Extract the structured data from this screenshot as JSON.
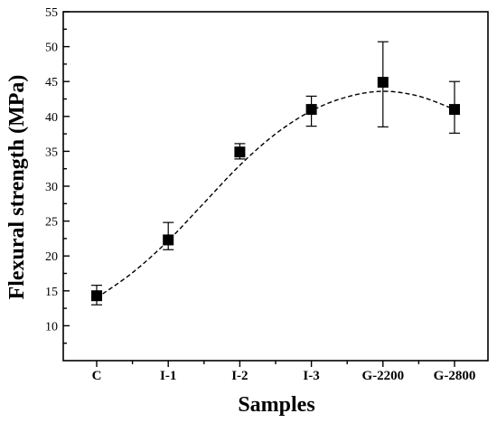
{
  "chart_data": {
    "type": "scatter",
    "categories": [
      "C",
      "I-1",
      "I-2",
      "I-3",
      "G-2200",
      "G-2800"
    ],
    "xlabel": "Samples",
    "ylabel": "Flexural strength (MPa)",
    "ylim": [
      5,
      55
    ],
    "yticks": [
      10,
      15,
      20,
      25,
      30,
      35,
      40,
      45,
      50,
      55
    ],
    "series": [
      {
        "values": [
          14.3,
          22.3,
          34.9,
          41.0,
          44.9,
          41.0
        ],
        "error_low": [
          13.0,
          20.9,
          33.9,
          38.6,
          38.5,
          37.6
        ],
        "error_high": [
          15.8,
          24.8,
          36.1,
          42.9,
          50.7,
          45.0
        ],
        "marker": "square"
      }
    ],
    "fit_curve": {
      "style": "dashed",
      "points": [
        [
          0,
          14.0
        ],
        [
          0.5,
          17.6
        ],
        [
          1,
          22.2
        ],
        [
          1.5,
          27.6
        ],
        [
          2,
          33.0
        ],
        [
          2.5,
          37.5
        ],
        [
          3,
          40.8
        ],
        [
          3.5,
          42.8
        ],
        [
          4,
          43.6
        ],
        [
          4.5,
          42.9
        ],
        [
          5,
          41.0
        ]
      ]
    },
    "grid": false,
    "colors": {
      "marker": "#000000",
      "line": "#000000"
    }
  }
}
